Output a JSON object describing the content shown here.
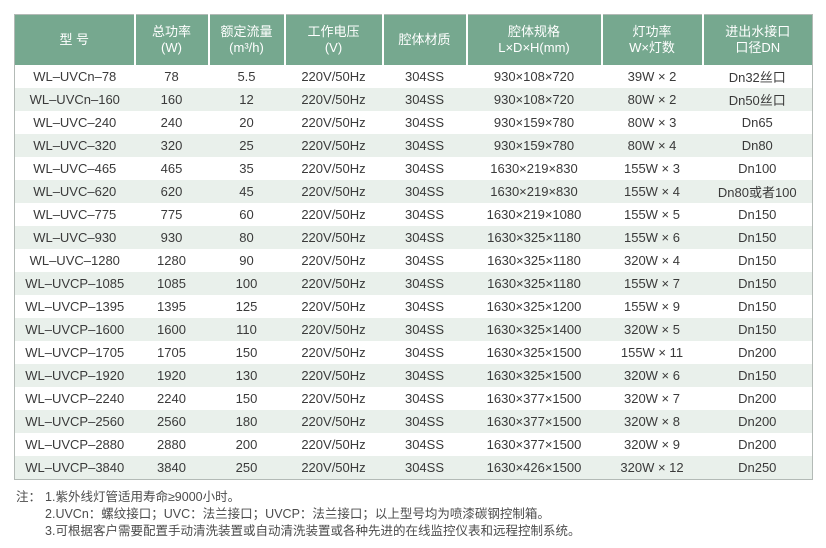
{
  "colors": {
    "header_bg": "#76a88f",
    "header_text": "#ffffff",
    "row_alt_bg": "#e9f0eb",
    "table_border": "#b3bab6",
    "body_text": "#3a3a3a",
    "notes_text": "#4c4c4c"
  },
  "table": {
    "columns": [
      {
        "line1": "型 号",
        "line2": ""
      },
      {
        "line1": "总功率",
        "line2": "(W)"
      },
      {
        "line1": "额定流量",
        "line2": "(m³/h)"
      },
      {
        "line1": "工作电压",
        "line2": "(V)"
      },
      {
        "line1": "腔体材质",
        "line2": ""
      },
      {
        "line1": "腔体规格",
        "line2": "L×D×H(mm)"
      },
      {
        "line1": "灯功率",
        "line2": "W×灯数"
      },
      {
        "line1": "进出水接口",
        "line2": "口径DN"
      }
    ],
    "rows": [
      [
        "WL–UVCn–78",
        "78",
        "5.5",
        "220V/50Hz",
        "304SS",
        "930×108×720",
        "39W × 2",
        "Dn32丝口"
      ],
      [
        "WL–UVCn–160",
        "160",
        "12",
        "220V/50Hz",
        "304SS",
        "930×108×720",
        "80W × 2",
        "Dn50丝口"
      ],
      [
        "WL–UVC–240",
        "240",
        "20",
        "220V/50Hz",
        "304SS",
        "930×159×780",
        "80W × 3",
        "Dn65"
      ],
      [
        "WL–UVC–320",
        "320",
        "25",
        "220V/50Hz",
        "304SS",
        "930×159×780",
        "80W × 4",
        "Dn80"
      ],
      [
        "WL–UVC–465",
        "465",
        "35",
        "220V/50Hz",
        "304SS",
        "1630×219×830",
        "155W × 3",
        "Dn100"
      ],
      [
        "WL–UVC–620",
        "620",
        "45",
        "220V/50Hz",
        "304SS",
        "1630×219×830",
        "155W × 4",
        "Dn80或者100"
      ],
      [
        "WL–UVC–775",
        "775",
        "60",
        "220V/50Hz",
        "304SS",
        "1630×219×1080",
        "155W × 5",
        "Dn150"
      ],
      [
        "WL–UVC–930",
        "930",
        "80",
        "220V/50Hz",
        "304SS",
        "1630×325×1180",
        "155W × 6",
        "Dn150"
      ],
      [
        "WL–UVC–1280",
        "1280",
        "90",
        "220V/50Hz",
        "304SS",
        "1630×325×1180",
        "320W × 4",
        "Dn150"
      ],
      [
        "WL–UVCP–1085",
        "1085",
        "100",
        "220V/50Hz",
        "304SS",
        "1630×325×1180",
        "155W × 7",
        "Dn150"
      ],
      [
        "WL–UVCP–1395",
        "1395",
        "125",
        "220V/50Hz",
        "304SS",
        "1630×325×1200",
        "155W × 9",
        "Dn150"
      ],
      [
        "WL–UVCP–1600",
        "1600",
        "110",
        "220V/50Hz",
        "304SS",
        "1630×325×1400",
        "320W × 5",
        "Dn150"
      ],
      [
        "WL–UVCP–1705",
        "1705",
        "150",
        "220V/50Hz",
        "304SS",
        "1630×325×1500",
        "155W × 11",
        "Dn200"
      ],
      [
        "WL–UVCP–1920",
        "1920",
        "130",
        "220V/50Hz",
        "304SS",
        "1630×325×1500",
        "320W × 6",
        "Dn150"
      ],
      [
        "WL–UVCP–2240",
        "2240",
        "150",
        "220V/50Hz",
        "304SS",
        "1630×377×1500",
        "320W × 7",
        "Dn200"
      ],
      [
        "WL–UVCP–2560",
        "2560",
        "180",
        "220V/50Hz",
        "304SS",
        "1630×377×1500",
        "320W × 8",
        "Dn200"
      ],
      [
        "WL–UVCP–2880",
        "2880",
        "200",
        "220V/50Hz",
        "304SS",
        "1630×377×1500",
        "320W × 9",
        "Dn200"
      ],
      [
        "WL–UVCP–3840",
        "3840",
        "250",
        "220V/50Hz",
        "304SS",
        "1630×426×1500",
        "320W × 12",
        "Dn250"
      ]
    ]
  },
  "notes": {
    "label": "注：",
    "items": [
      "1.紫外线灯管适用寿命≥9000小时。",
      "2.UVCn：螺纹接口；UVC：法兰接口；UVCP：法兰接口；以上型号均为喷漆碳钢控制箱。",
      "3.可根据客户需要配置手动清洗装置或自动清洗装置或各种先进的在线监控仪表和远程控制系统。"
    ]
  }
}
